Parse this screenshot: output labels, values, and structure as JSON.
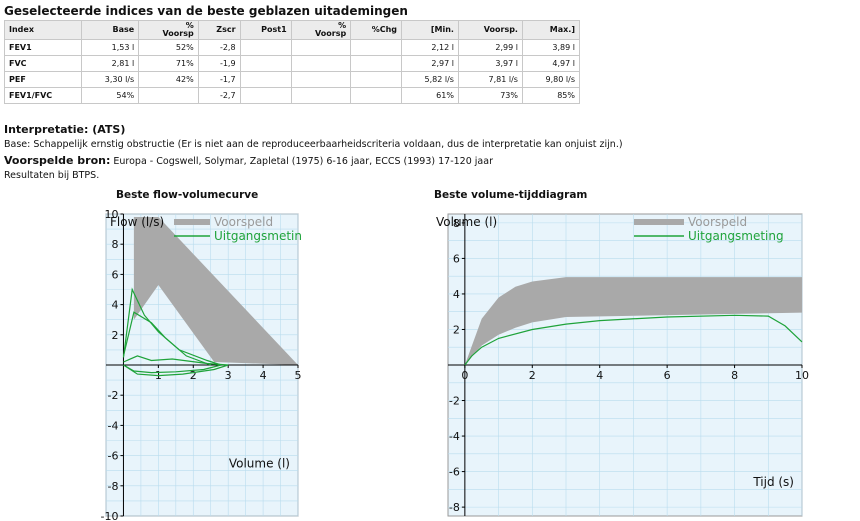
{
  "section_title": "Geselecteerde indices van de beste geblazen uitademingen",
  "table": {
    "headers": [
      "Index",
      "Base",
      "%\nVoorsp",
      "Zscr",
      "Post1",
      "%\nVoorsp",
      "%Chg",
      "[Min.",
      "Voorsp.",
      "Max.]"
    ],
    "rows": [
      [
        "FEV1",
        "1,53 l",
        "52%",
        "-2,8",
        "",
        "",
        "",
        "2,12 l",
        "2,99 l",
        "3,89 l"
      ],
      [
        "FVC",
        "2,81 l",
        "71%",
        "-1,9",
        "",
        "",
        "",
        "2,97 l",
        "3,97 l",
        "4,97 l"
      ],
      [
        "PEF",
        "3,30 l/s",
        "42%",
        "-1,7",
        "",
        "",
        "",
        "5,82 l/s",
        "7,81 l/s",
        "9,80 l/s"
      ],
      [
        "FEV1/FVC",
        "54%",
        "",
        "-2,7",
        "",
        "",
        "",
        "61%",
        "73%",
        "85%"
      ]
    ]
  },
  "interpretation": {
    "heading": "Interpretatie: (ATS)",
    "text": "Base: Schappelijk ernstig obstructie (Er is niet aan de reproduceerbaarheidscriteria voldaan, dus de interpretatie kan onjuist zijn.)"
  },
  "reference": {
    "label": "Voorspelde bron:",
    "text": "Europa - Cogswell, Solymar, Zapletal (1975) 6-16 jaar, ECCS (1993) 17-120 jaar"
  },
  "btps_note": "Resultaten bij BTPS.",
  "colors": {
    "predicted_band": "#a9a9a9",
    "measured": "#1fa33a",
    "plot_bg": "#e8f4fb",
    "grid": "#b9dcee"
  },
  "chart_data": [
    {
      "type": "line",
      "title": "Beste flow-volumecurve",
      "xlabel": "Volume (l)",
      "ylabel": "Flow (l/s)",
      "xlim": [
        -0.5,
        5
      ],
      "ylim": [
        -10,
        10
      ],
      "x_ticks": [
        1,
        2,
        3,
        4,
        5
      ],
      "y_ticks": [
        -10,
        -8,
        -6,
        -4,
        -2,
        2,
        4,
        6,
        8,
        10
      ],
      "legend": [
        "Voorspeld",
        "Uitgangsmeting"
      ],
      "predicted_band": {
        "upper": [
          [
            0.3,
            9.8
          ],
          [
            1.0,
            9.8
          ],
          [
            5.0,
            0
          ]
        ],
        "lower": [
          [
            0.3,
            3.0
          ],
          [
            1.0,
            5.3
          ],
          [
            2.6,
            0.2
          ]
        ]
      },
      "series": [
        {
          "name": "Uitgangsmeting",
          "values": [
            [
              0,
              0.5
            ],
            [
              0.25,
              5.0
            ],
            [
              0.6,
              3.3
            ],
            [
              1.0,
              2.2
            ],
            [
              1.6,
              1.0
            ],
            [
              2.4,
              0.3
            ],
            [
              2.8,
              0
            ]
          ]
        },
        {
          "name": "Uitgangsmeting",
          "values": [
            [
              0,
              0.6
            ],
            [
              0.3,
              3.5
            ],
            [
              0.8,
              2.8
            ],
            [
              1.2,
              1.8
            ],
            [
              1.8,
              0.6
            ],
            [
              2.5,
              0
            ]
          ]
        },
        {
          "name": "Uitgangsmeting",
          "values": [
            [
              0,
              0.2
            ],
            [
              0.4,
              0.6
            ],
            [
              0.8,
              0.3
            ],
            [
              1.4,
              0.4
            ],
            [
              2.4,
              0.1
            ],
            [
              3.0,
              0
            ]
          ]
        },
        {
          "name": "Uitgangsmeting",
          "values": [
            [
              0,
              0
            ],
            [
              0.3,
              -0.4
            ],
            [
              0.8,
              -0.5
            ],
            [
              1.5,
              -0.45
            ],
            [
              2.3,
              -0.3
            ],
            [
              2.8,
              0
            ]
          ]
        },
        {
          "name": "Uitgangsmeting",
          "values": [
            [
              0,
              0
            ],
            [
              0.4,
              -0.6
            ],
            [
              1.0,
              -0.7
            ],
            [
              1.7,
              -0.6
            ],
            [
              2.6,
              -0.3
            ],
            [
              3.0,
              0
            ]
          ]
        }
      ]
    },
    {
      "type": "line",
      "title": "Beste volume-tijddiagram",
      "xlabel": "Tijd (s)",
      "ylabel": "Volume (l)",
      "xlim": [
        -0.5,
        10
      ],
      "ylim": [
        -8.5,
        8.5
      ],
      "x_ticks": [
        0,
        2,
        4,
        6,
        8,
        10
      ],
      "y_ticks": [
        -8,
        -6,
        -4,
        -2,
        2,
        4,
        6,
        8
      ],
      "legend": [
        "Voorspeld",
        "Uitgangsmeting"
      ],
      "predicted_band": {
        "upper": [
          [
            0,
            0
          ],
          [
            0.5,
            2.6
          ],
          [
            1.0,
            3.8
          ],
          [
            1.5,
            4.4
          ],
          [
            2.0,
            4.7
          ],
          [
            3.0,
            4.95
          ],
          [
            10,
            4.95
          ]
        ],
        "lower": [
          [
            0,
            0
          ],
          [
            0.5,
            1.1
          ],
          [
            1.0,
            1.7
          ],
          [
            1.5,
            2.1
          ],
          [
            2.0,
            2.4
          ],
          [
            3.0,
            2.7
          ],
          [
            10,
            2.95
          ]
        ]
      },
      "series": [
        {
          "name": "Uitgangsmeting",
          "values": [
            [
              0,
              0
            ],
            [
              0.2,
              0.5
            ],
            [
              0.5,
              1.0
            ],
            [
              1.0,
              1.5
            ],
            [
              2.0,
              2.0
            ],
            [
              3.0,
              2.3
            ],
            [
              4.0,
              2.5
            ],
            [
              6.0,
              2.7
            ],
            [
              8.0,
              2.8
            ],
            [
              9.0,
              2.75
            ],
            [
              9.5,
              2.2
            ],
            [
              10,
              1.3
            ]
          ]
        }
      ]
    }
  ]
}
